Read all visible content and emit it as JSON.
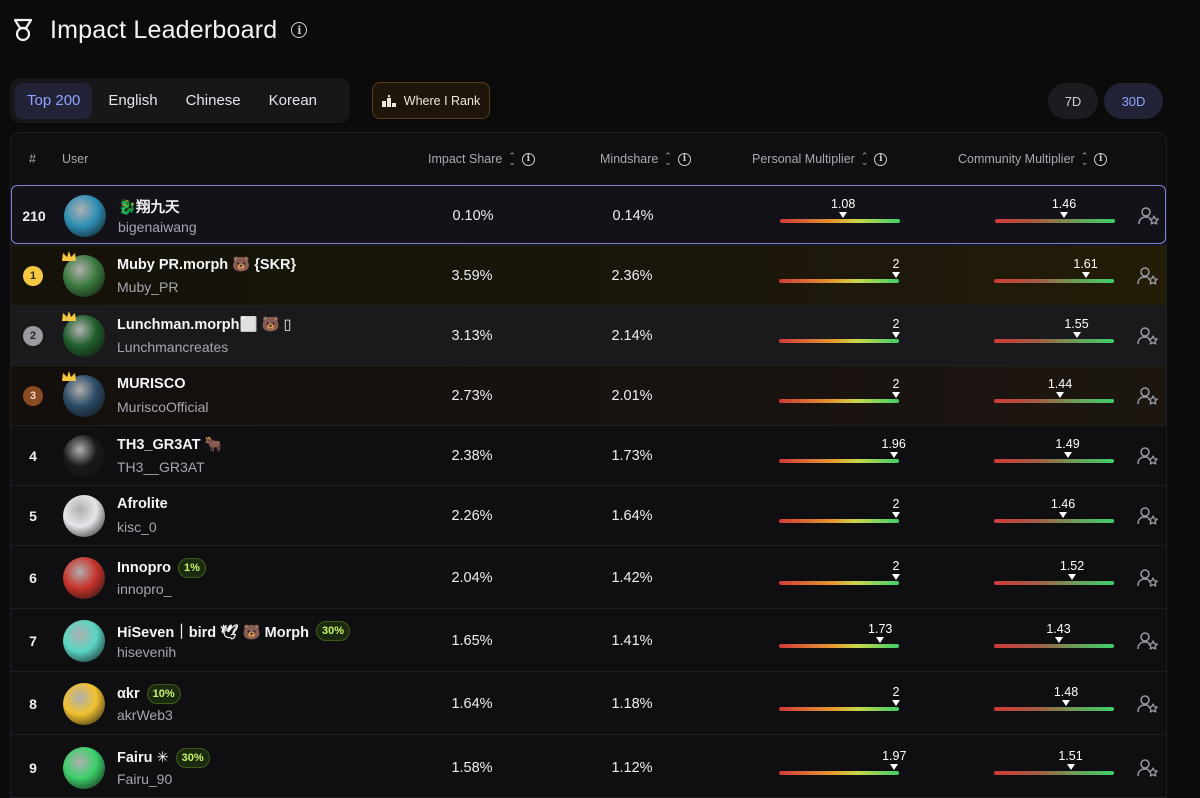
{
  "header": {
    "title": "Impact Leaderboard"
  },
  "tabs": [
    {
      "label": "Top 200",
      "active": true
    },
    {
      "label": "English",
      "active": false
    },
    {
      "label": "Chinese",
      "active": false
    },
    {
      "label": "Korean",
      "active": false
    }
  ],
  "where_rank": {
    "label": "Where I Rank"
  },
  "periods": [
    {
      "label": "7D",
      "active": false
    },
    {
      "label": "30D",
      "active": true
    }
  ],
  "columns": {
    "rank": "#",
    "user": "User",
    "impact": "Impact Share",
    "mindshare": "Mindshare",
    "personal": "Personal Multiplier",
    "community": "Community Multiplier"
  },
  "rows": [
    {
      "rank": "210",
      "name": "🐉翔九天",
      "handle": "bigenaiwang",
      "badge": "",
      "impact": "0.10%",
      "mindshare": "0.14%",
      "pm": "1.08",
      "pm_val": 1.08,
      "cm": "1.46",
      "cm_val": 1.46,
      "style": "me",
      "avatar": "#2e8fb5"
    },
    {
      "rank": "1",
      "name": "Muby PR.morph 🐻 {SKR}",
      "handle": "Muby_PR",
      "badge": "",
      "impact": "3.59%",
      "mindshare": "2.36%",
      "pm": "2",
      "pm_val": 2,
      "cm": "1.61",
      "cm_val": 1.61,
      "style": "gold",
      "avatar": "#3a7a3e"
    },
    {
      "rank": "2",
      "name": "Lunchman.morph⬜ 🐻 ▯",
      "handle": "Lunchmancreates",
      "badge": "",
      "impact": "3.13%",
      "mindshare": "2.14%",
      "pm": "2",
      "pm_val": 2,
      "cm": "1.55",
      "cm_val": 1.55,
      "style": "silver",
      "avatar": "#1f5e2a"
    },
    {
      "rank": "3",
      "name": "MURISCO",
      "handle": "MuriscoOfficial",
      "badge": "",
      "impact": "2.73%",
      "mindshare": "2.01%",
      "pm": "2",
      "pm_val": 2,
      "cm": "1.44",
      "cm_val": 1.44,
      "style": "bronze",
      "avatar": "#2a4a66"
    },
    {
      "rank": "4",
      "name": "TH3_GR3AT 🐂",
      "handle": "TH3__GR3AT",
      "badge": "",
      "impact": "2.38%",
      "mindshare": "1.73%",
      "pm": "1.96",
      "pm_val": 1.96,
      "cm": "1.49",
      "cm_val": 1.49,
      "style": "",
      "avatar": "#1a1a1a"
    },
    {
      "rank": "5",
      "name": "Afrolite",
      "handle": "kisc_0",
      "badge": "",
      "impact": "2.26%",
      "mindshare": "1.64%",
      "pm": "2",
      "pm_val": 2,
      "cm": "1.46",
      "cm_val": 1.46,
      "style": "",
      "avatar": "#e6e6ea"
    },
    {
      "rank": "6",
      "name": "Innopro",
      "handle": "innopro_",
      "badge": "1%",
      "impact": "2.04%",
      "mindshare": "1.42%",
      "pm": "2",
      "pm_val": 2,
      "cm": "1.52",
      "cm_val": 1.52,
      "style": "",
      "avatar": "#c8342c"
    },
    {
      "rank": "7",
      "name": "HiSeven｜bird 🕊 🐻 Morph",
      "handle": "hisevenih",
      "badge": "30%",
      "impact": "1.65%",
      "mindshare": "1.41%",
      "pm": "1.73",
      "pm_val": 1.73,
      "cm": "1.43",
      "cm_val": 1.43,
      "style": "",
      "avatar": "#5ad6c4"
    },
    {
      "rank": "8",
      "name": "αkr",
      "handle": "akrWeb3",
      "badge": "10%",
      "impact": "1.64%",
      "mindshare": "1.18%",
      "pm": "2",
      "pm_val": 2,
      "cm": "1.48",
      "cm_val": 1.48,
      "style": "",
      "avatar": "#f2c230"
    },
    {
      "rank": "9",
      "name": "Fairu ✳",
      "handle": "Fairu_90",
      "badge": "30%",
      "impact": "1.58%",
      "mindshare": "1.12%",
      "pm": "1.97",
      "pm_val": 1.97,
      "cm": "1.51",
      "cm_val": 1.51,
      "style": "",
      "avatar": "#3bd06a"
    }
  ]
}
